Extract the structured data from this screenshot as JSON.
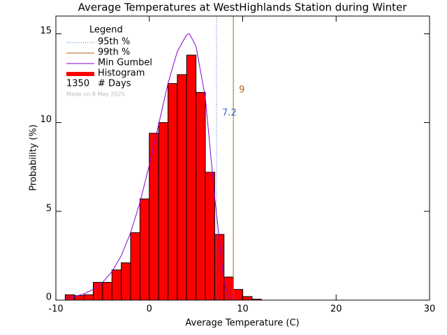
{
  "chart_data": {
    "type": "histogram",
    "title": "Average Temperatures at WestHighlands Station during Winter",
    "xlabel": "Average Temperature (C)",
    "ylabel": "Probability (%)",
    "bins": [
      -9,
      -8,
      -7,
      -6,
      -5,
      -4,
      -3,
      -2,
      -1,
      0,
      1,
      2,
      3,
      4,
      5,
      6,
      7,
      8,
      9,
      10,
      11,
      12
    ],
    "values": [
      0.3,
      0.25,
      0.3,
      1.0,
      1.0,
      1.7,
      2.1,
      3.8,
      5.7,
      9.4,
      10.0,
      12.2,
      12.7,
      13.8,
      11.7,
      7.2,
      3.7,
      1.3,
      0.6,
      0.2,
      0.05
    ],
    "name": "Histogram",
    "color": "#ff0000",
    "gumbel": {
      "name": "Min Gumbel",
      "color": "#8a00d4",
      "x": [
        -9,
        -8,
        -7,
        -6,
        -5,
        -4,
        -3,
        -2,
        -1,
        0,
        1,
        2,
        3,
        4,
        4.3,
        5,
        6,
        7,
        8,
        8.5,
        9
      ],
      "values": [
        0.1,
        0.2,
        0.35,
        0.6,
        1.0,
        1.6,
        2.5,
        3.8,
        5.5,
        7.6,
        9.9,
        12.2,
        14.0,
        14.95,
        15.0,
        14.3,
        11.4,
        5.8,
        1.0,
        0.2,
        0.02
      ]
    },
    "percentiles": [
      {
        "name": "95th %",
        "value": 7.2,
        "color": "#2a6fc0"
      },
      {
        "name": "99th %",
        "value": 9.0,
        "color": "#b0601a"
      }
    ],
    "legend_title": "Legend",
    "days": {
      "value": 1350,
      "label": "# Days"
    },
    "note": "Made on 8 May 2025",
    "xlim": [
      -10,
      30
    ],
    "xticks": [
      -10,
      0,
      10,
      20,
      30
    ],
    "ylim": [
      0,
      16
    ],
    "yticks": [
      0,
      5,
      10,
      15
    ]
  }
}
